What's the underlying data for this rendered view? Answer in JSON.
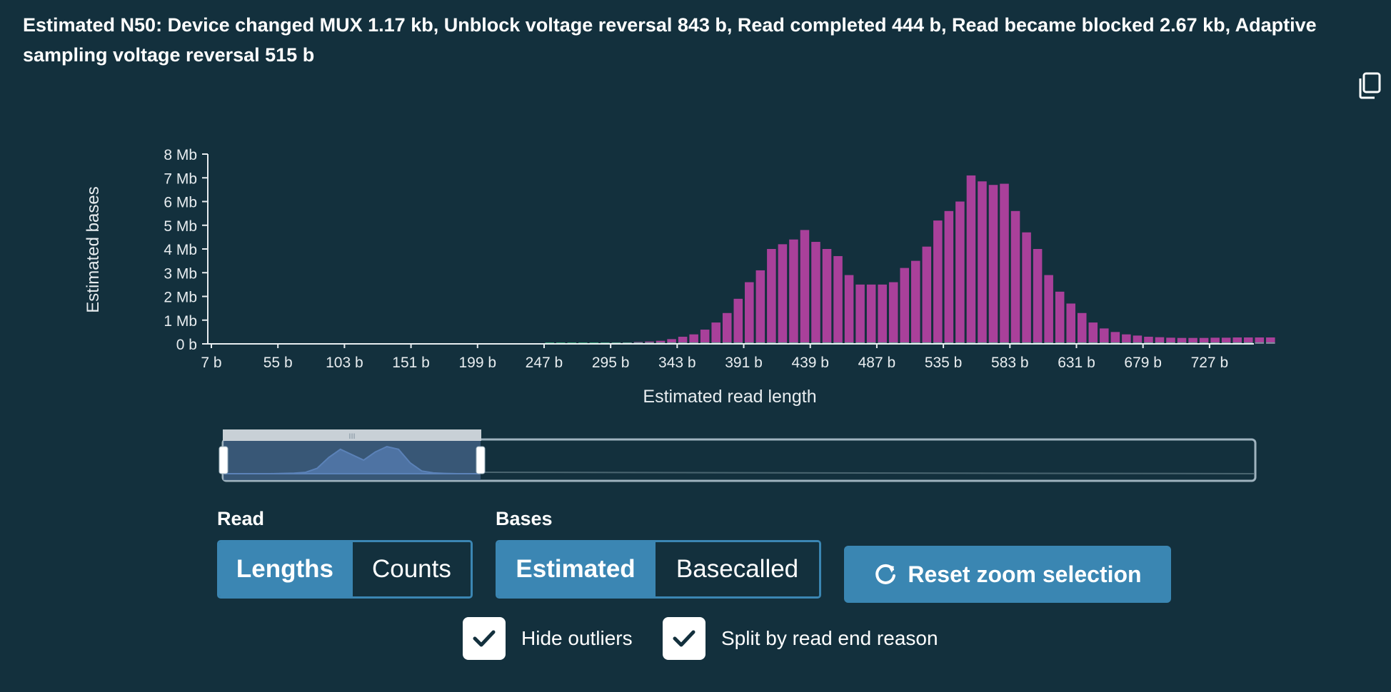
{
  "n50_text": "Estimated N50: Device changed MUX 1.17 kb, Unblock voltage reversal 843 b, Read completed 444 b, Read became blocked 2.67 kb, Adaptive sampling voltage reversal 515 b",
  "icons": {
    "copy": "copy-icon",
    "reset": "refresh-icon",
    "check": "check-icon"
  },
  "colors": {
    "background": "#13303d",
    "bar": "#a9409a",
    "accent": "#3b86b3",
    "secondary_series": "#4fd49a"
  },
  "chart_data": {
    "type": "bar",
    "xlabel": "Estimated read length",
    "ylabel": "Estimated bases",
    "x_ticks": [
      "7 b",
      "55 b",
      "103 b",
      "151 b",
      "199 b",
      "247 b",
      "295 b",
      "343 b",
      "391 b",
      "439 b",
      "487 b",
      "535 b",
      "583 b",
      "631 b",
      "679 b",
      "727 b"
    ],
    "y_ticks": [
      "0 b",
      "1 Mb",
      "2 Mb",
      "3 Mb",
      "4 Mb",
      "5 Mb",
      "6 Mb",
      "7 Mb",
      "8 Mb"
    ],
    "ylim_mb": [
      0,
      8
    ],
    "xlim_b": [
      7,
      759
    ],
    "bin_width_b": 8,
    "series": [
      {
        "x_start_b": 247,
        "values_mb": [
          0.02,
          0.02,
          0.02,
          0.03,
          0.03,
          0.04,
          0.05,
          0.06,
          0.08,
          0.1,
          0.13,
          0.2,
          0.3,
          0.4,
          0.6,
          0.9,
          1.3,
          1.9,
          2.6,
          3.1,
          4.0,
          4.2,
          4.4,
          4.8,
          4.3,
          4.0,
          3.7,
          2.9,
          2.5,
          2.5,
          2.5,
          2.6,
          3.2,
          3.5,
          4.1,
          5.2,
          5.6,
          6.0,
          7.1,
          6.85,
          6.7,
          6.75,
          5.6,
          4.7,
          4.0,
          2.9,
          2.2,
          1.7,
          1.3,
          0.9,
          0.65,
          0.5,
          0.4,
          0.35,
          0.3,
          0.28,
          0.26,
          0.25,
          0.25,
          0.25,
          0.26,
          0.26,
          0.27,
          0.27,
          0.27,
          0.27
        ]
      }
    ]
  },
  "navigator": {
    "handle_glyph": "III",
    "profile": [
      0,
      0,
      0,
      0,
      0,
      0.01,
      0.02,
      0.05,
      0.2,
      0.6,
      0.9,
      0.7,
      0.5,
      0.8,
      1.0,
      0.9,
      0.4,
      0.1,
      0.03,
      0.01,
      0,
      0,
      0
    ]
  },
  "controls": {
    "read": {
      "label": "Read",
      "options": [
        "Lengths",
        "Counts"
      ],
      "selected": "Lengths"
    },
    "bases": {
      "label": "Bases",
      "options": [
        "Estimated",
        "Basecalled"
      ],
      "selected": "Estimated"
    },
    "reset_label": "Reset zoom selection",
    "hide_outliers": {
      "label": "Hide outliers",
      "checked": true
    },
    "split_by_reason": {
      "label": "Split by read end reason",
      "checked": true
    }
  }
}
